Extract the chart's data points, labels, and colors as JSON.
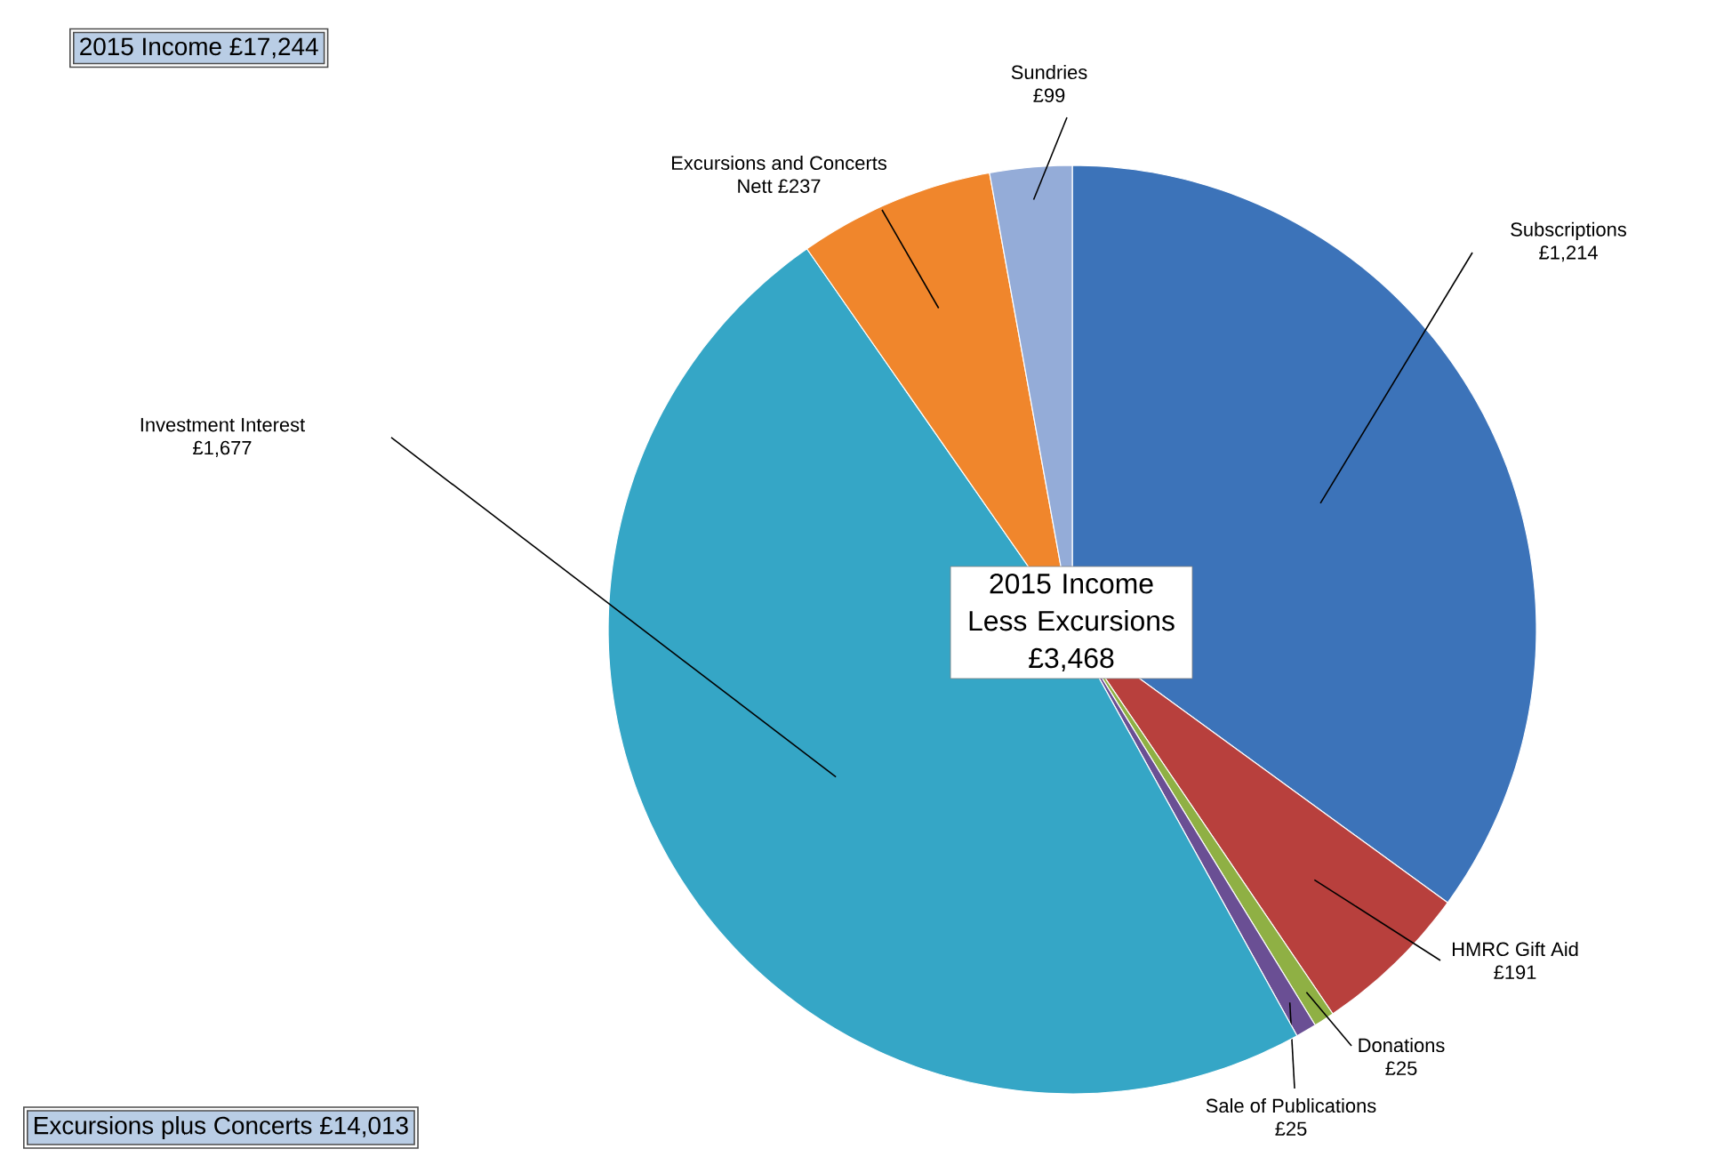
{
  "chart_data": {
    "type": "pie",
    "title": "2015 Income £17,244",
    "categories": [
      "Subscriptions",
      "HMRC Gift Aid",
      "Donations",
      "Sale of Publications",
      "Investment Interest",
      "Excursions and Concerts",
      "Sundries"
    ],
    "values": [
      1214,
      191,
      25,
      25,
      1677,
      237,
      99
    ],
    "value_labels": [
      "£1,214",
      "£191",
      "£25",
      "£25",
      "£1,677",
      "Nett £237",
      "£99"
    ],
    "colors": [
      "#3c73b9",
      "#b8403d",
      "#8fb044",
      "#6a4f94",
      "#35a6c6",
      "#f0862c",
      "#94acd8"
    ],
    "annotations": [
      "2015 Income Less Excursions £3,468",
      "Excursions plus Concerts  £14,013"
    ]
  }
}
